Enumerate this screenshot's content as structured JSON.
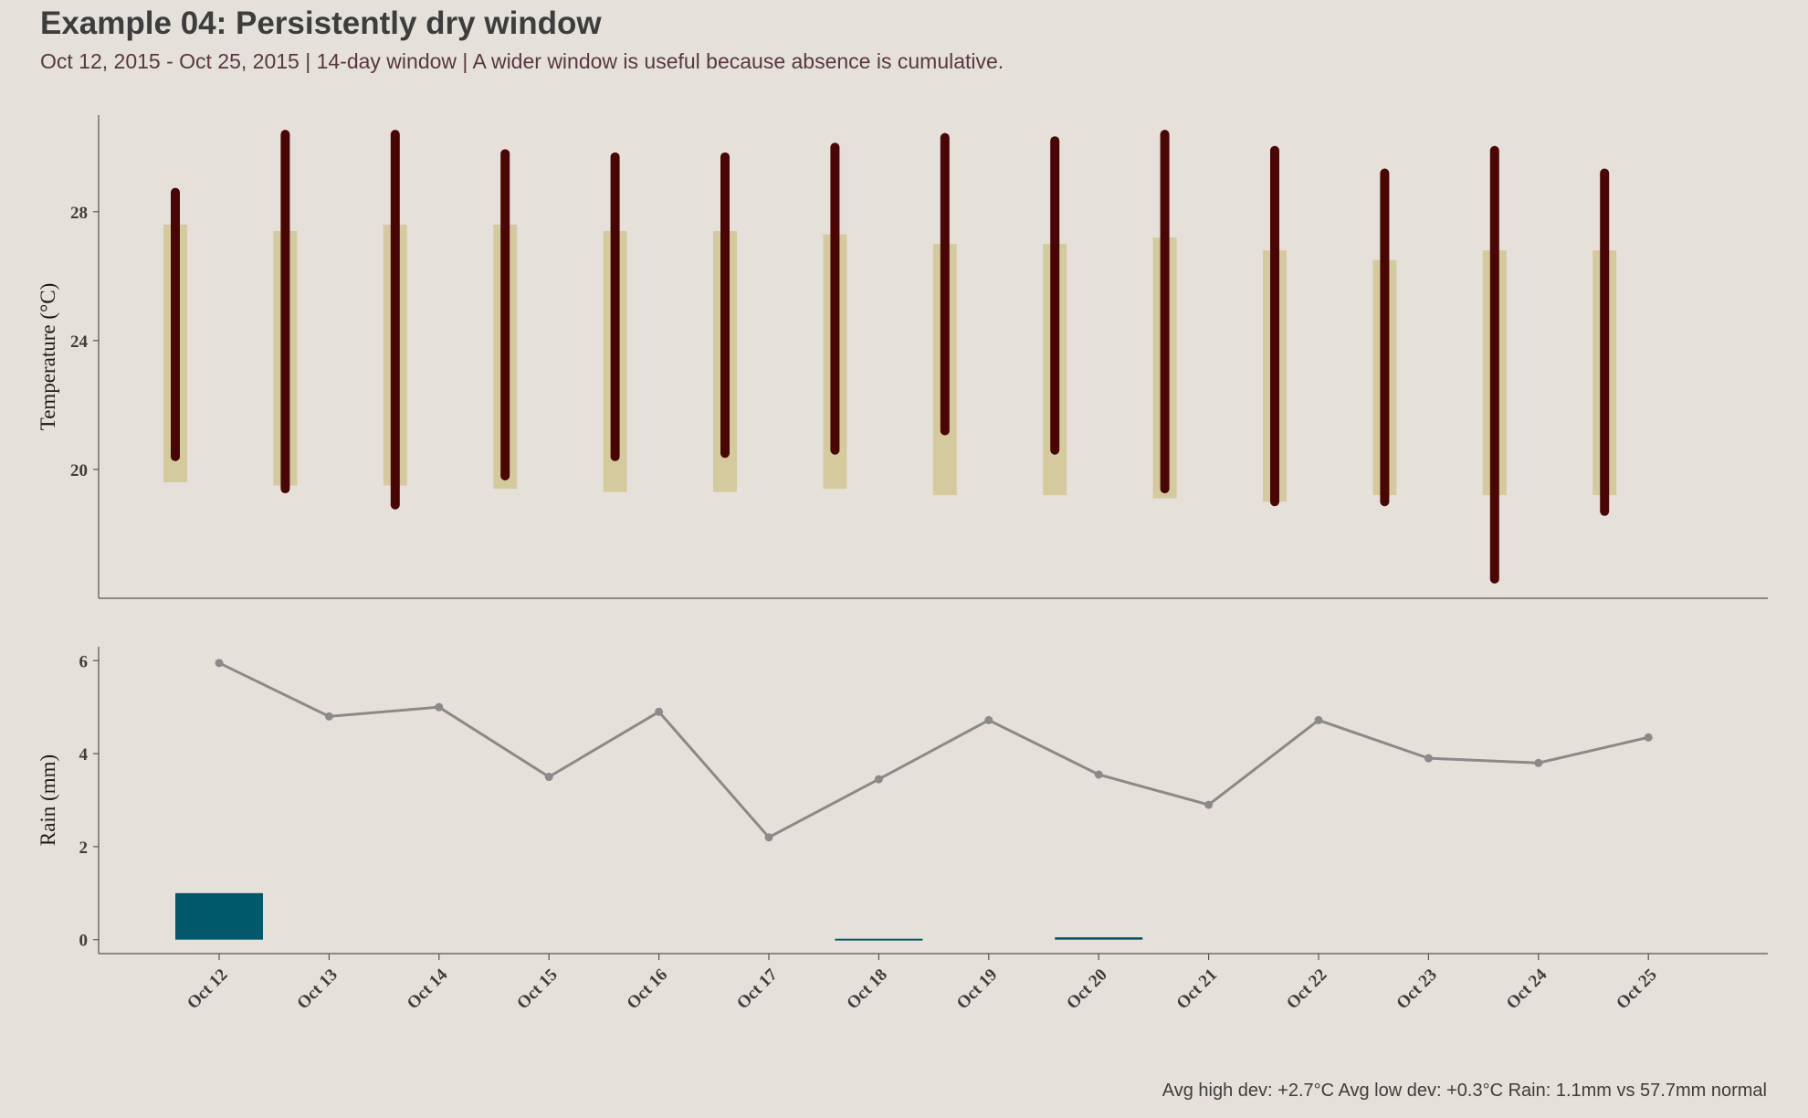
{
  "header": {
    "title": "Example 04: Persistently dry window",
    "subtitle": "Oct 12, 2015 - Oct 25, 2015  |  14-day window  |  A wider window is useful because absence is cumulative."
  },
  "footer": {
    "text": "Avg high dev: +2.7°C   Avg low dev: +0.3°C   Rain: 1.1mm vs 57.7mm normal"
  },
  "colors": {
    "background": "#e5e1da",
    "normal_band": "#d4ca9e",
    "actual_range": "#4a0505",
    "rain_bar": "#00586b",
    "normal_rain_line": "#8a8a8a",
    "axis": "#555555"
  },
  "chart_data": [
    {
      "type": "bar",
      "description_id": "temperature",
      "ylabel": "Temperature (°C)",
      "ylim": [
        16,
        31
      ],
      "yticks": [
        20,
        24,
        28
      ],
      "categories": [
        "Oct 12",
        "Oct 13",
        "Oct 14",
        "Oct 15",
        "Oct 16",
        "Oct 17",
        "Oct 18",
        "Oct 19",
        "Oct 20",
        "Oct 21",
        "Oct 22",
        "Oct 23",
        "Oct 24",
        "Oct 25"
      ],
      "series": [
        {
          "kind": "normal-range",
          "low": [
            19.6,
            19.5,
            19.5,
            19.4,
            19.3,
            19.3,
            19.4,
            19.2,
            19.2,
            19.1,
            19.0,
            19.2,
            19.2,
            19.2
          ],
          "high": [
            27.6,
            27.4,
            27.6,
            27.6,
            27.4,
            27.4,
            27.3,
            27.0,
            27.0,
            27.2,
            26.8,
            26.5,
            26.8,
            26.8
          ]
        },
        {
          "kind": "actual-range",
          "low": [
            20.4,
            19.4,
            18.9,
            19.8,
            20.4,
            20.5,
            20.6,
            21.2,
            20.6,
            19.4,
            19.0,
            19.0,
            16.6,
            18.7
          ],
          "high": [
            28.6,
            30.4,
            30.4,
            29.8,
            29.7,
            29.7,
            30.0,
            30.3,
            30.2,
            30.4,
            29.9,
            29.2,
            29.9,
            29.2
          ]
        }
      ]
    },
    {
      "type": "bar",
      "description_id": "rain",
      "ylabel": "Rain (mm)",
      "ylim": [
        -0.3,
        6.3
      ],
      "yticks": [
        0,
        2,
        4,
        6
      ],
      "categories": [
        "Oct 12",
        "Oct 13",
        "Oct 14",
        "Oct 15",
        "Oct 16",
        "Oct 17",
        "Oct 18",
        "Oct 19",
        "Oct 20",
        "Oct 21",
        "Oct 22",
        "Oct 23",
        "Oct 24",
        "Oct 25"
      ],
      "series": [
        {
          "kind": "actual-rain-bars",
          "values": [
            1.0,
            0,
            0,
            0,
            0,
            0,
            0.02,
            0,
            0.05,
            0,
            0,
            0,
            0,
            0
          ]
        },
        {
          "kind": "normal-rain-line",
          "values": [
            5.95,
            4.8,
            5.0,
            3.5,
            4.9,
            2.2,
            3.45,
            4.72,
            3.55,
            2.9,
            4.72,
            3.9,
            3.8,
            4.35
          ]
        }
      ]
    }
  ]
}
